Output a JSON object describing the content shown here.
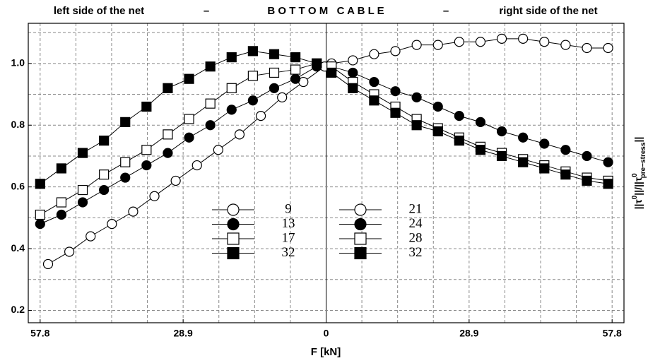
{
  "chart_data": {
    "type": "line",
    "header": [
      "left side of the net",
      "–",
      "B O T T O M   C A B L E",
      "–",
      "right side of the net"
    ],
    "xlabel": "F [kN]",
    "ylabel_parts": [
      "||τ",
      "0",
      "||/||τ",
      "0",
      "pre−stress",
      "||"
    ],
    "xlim": [
      -60.2,
      60.2
    ],
    "ylim": [
      0.16,
      1.13
    ],
    "xticks": [
      {
        "value": -57.8,
        "label": "57.8"
      },
      {
        "value": -28.9,
        "label": "28.9"
      },
      0,
      28.9,
      57.8
    ],
    "yticks": [
      0.2,
      0.4,
      0.6,
      0.8,
      {
        "value": 1,
        "label": "1.0"
      }
    ],
    "xminorticks": [
      -50.575,
      -43.35,
      -36.125,
      -21.675,
      -14.45,
      -7.225,
      7.225,
      14.45,
      21.675,
      36.125,
      43.35,
      50.575
    ],
    "yminorticks": [
      0.3,
      0.5,
      0.7,
      0.9,
      1.1
    ],
    "grid": true,
    "series": [
      {
        "name": "9",
        "color": "#000000",
        "marker": "circle",
        "filled": false,
        "x": [
          -56.2,
          -51.9,
          -47.6,
          -43.3,
          -39.0,
          -34.7,
          -30.4,
          -26.1,
          -21.8,
          -17.5,
          -13.2,
          -8.9,
          -4.6,
          -0.3
        ],
        "values": [
          0.35,
          0.39,
          0.44,
          0.48,
          0.52,
          0.57,
          0.62,
          0.67,
          0.72,
          0.77,
          0.83,
          0.89,
          0.94,
          0.99
        ]
      },
      {
        "name": "13",
        "color": "#000000",
        "marker": "circle",
        "filled": true,
        "x": [
          -57.8,
          -53.5,
          -49.2,
          -44.9,
          -40.6,
          -36.3,
          -32.0,
          -27.7,
          -23.4,
          -19.1,
          -14.8,
          -10.5,
          -6.2,
          -1.9
        ],
        "values": [
          0.48,
          0.51,
          0.55,
          0.59,
          0.63,
          0.67,
          0.71,
          0.76,
          0.8,
          0.85,
          0.88,
          0.92,
          0.95,
          0.99
        ]
      },
      {
        "name": "17",
        "color": "#000000",
        "marker": "square",
        "filled": false,
        "x": [
          -57.8,
          -53.5,
          -49.2,
          -44.9,
          -40.6,
          -36.3,
          -32.0,
          -27.7,
          -23.4,
          -19.1,
          -14.8,
          -10.5,
          -6.2,
          -1.9
        ],
        "values": [
          0.51,
          0.55,
          0.59,
          0.64,
          0.68,
          0.72,
          0.77,
          0.82,
          0.87,
          0.92,
          0.96,
          0.97,
          0.98,
          1.0
        ]
      },
      {
        "name": "32",
        "color": "#000000",
        "marker": "square",
        "filled": true,
        "x": [
          -57.8,
          -53.5,
          -49.2,
          -44.9,
          -40.6,
          -36.3,
          -32.0,
          -27.7,
          -23.4,
          -19.1,
          -14.8,
          -10.5,
          -6.2,
          -1.9
        ],
        "values": [
          0.61,
          0.66,
          0.71,
          0.75,
          0.81,
          0.86,
          0.92,
          0.95,
          0.99,
          1.02,
          1.04,
          1.03,
          1.02,
          1.0
        ]
      },
      {
        "name": "21",
        "color": "#000000",
        "marker": "circle",
        "filled": false,
        "x": [
          1.1,
          5.4,
          9.7,
          14.0,
          18.3,
          22.6,
          26.9,
          31.2,
          35.5,
          39.8,
          44.1,
          48.4,
          52.7,
          57.0
        ],
        "values": [
          1.0,
          1.01,
          1.03,
          1.04,
          1.06,
          1.06,
          1.07,
          1.07,
          1.08,
          1.08,
          1.07,
          1.06,
          1.05,
          1.05
        ]
      },
      {
        "name": "24",
        "color": "#000000",
        "marker": "circle",
        "filled": true,
        "x": [
          1.1,
          5.4,
          9.7,
          14.0,
          18.3,
          22.6,
          26.9,
          31.2,
          35.5,
          39.8,
          44.1,
          48.4,
          52.7,
          57.0
        ],
        "values": [
          0.99,
          0.97,
          0.94,
          0.91,
          0.89,
          0.86,
          0.83,
          0.81,
          0.78,
          0.76,
          0.74,
          0.72,
          0.7,
          0.68
        ]
      },
      {
        "name": "28",
        "color": "#000000",
        "marker": "square",
        "filled": false,
        "x": [
          1.1,
          5.4,
          9.7,
          14.0,
          18.3,
          22.6,
          26.9,
          31.2,
          35.5,
          39.8,
          44.1,
          48.4,
          52.7,
          57.0
        ],
        "values": [
          0.99,
          0.94,
          0.9,
          0.86,
          0.82,
          0.79,
          0.76,
          0.73,
          0.71,
          0.69,
          0.67,
          0.65,
          0.63,
          0.62
        ]
      },
      {
        "name": "32",
        "color": "#000000",
        "marker": "square",
        "filled": true,
        "x": [
          1.1,
          5.4,
          9.7,
          14.0,
          18.3,
          22.6,
          26.9,
          31.2,
          35.5,
          39.8,
          44.1,
          48.4,
          52.7,
          57.0
        ],
        "values": [
          0.97,
          0.92,
          0.88,
          0.84,
          0.8,
          0.78,
          0.75,
          0.72,
          0.7,
          0.68,
          0.66,
          0.64,
          0.62,
          0.61
        ]
      }
    ]
  }
}
